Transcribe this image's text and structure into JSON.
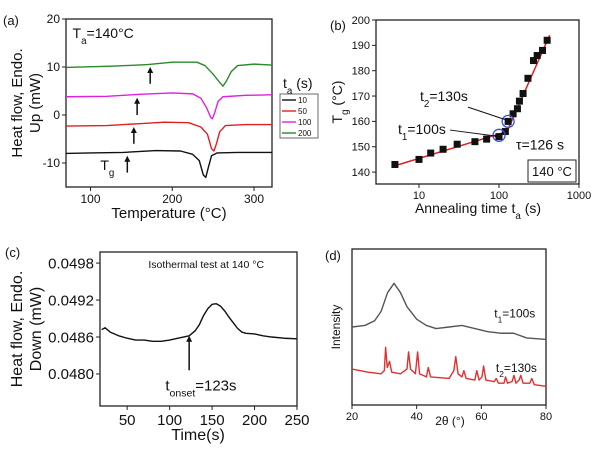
{
  "chart_data": [
    {
      "id": "a",
      "type": "line",
      "panel_label": "(a)",
      "xlabel": [
        {
          "t": "Temperature (°C)"
        }
      ],
      "ylabel_lines": [
        "Heat flow, Endo.",
        "Up (mW)"
      ],
      "xlim": [
        70,
        322
      ],
      "ylim": [
        -15,
        20
      ],
      "xticks": [
        100,
        200,
        300
      ],
      "yticks": [
        -10,
        0,
        10,
        20
      ],
      "annotations": [
        {
          "segments": [
            {
              "t": "T"
            },
            {
              "t": "a",
              "sub": true
            },
            {
              "t": "=140°C"
            }
          ],
          "at": [
            78,
            16
          ]
        },
        {
          "segments": [
            {
              "t": "T"
            },
            {
              "t": "g",
              "sub": true
            }
          ],
          "at": [
            112,
            -11.5
          ]
        }
      ],
      "arrows": [
        {
          "x": 145,
          "y_from": -12,
          "y_to": -8.5
        },
        {
          "x": 153,
          "y_from": -6,
          "y_to": -2.5
        },
        {
          "x": 157,
          "y_from": 0,
          "y_to": 3.6
        },
        {
          "x": 173,
          "y_from": 6.5,
          "y_to": 10
        }
      ],
      "legend": {
        "title": [
          {
            "t": "t"
          },
          {
            "t": "a",
            "sub": true
          },
          {
            "t": " (s)"
          }
        ],
        "placement": "right-outside"
      },
      "series": [
        {
          "name": "10",
          "color": "#111111",
          "points": [
            [
              70,
              -8
            ],
            [
              100,
              -7.9
            ],
            [
              140,
              -7.8
            ],
            [
              180,
              -7.4
            ],
            [
              210,
              -7.5
            ],
            [
              225,
              -8.2
            ],
            [
              233,
              -9.5
            ],
            [
              238,
              -12.5
            ],
            [
              241,
              -13
            ],
            [
              244,
              -11
            ],
            [
              248,
              -8.5
            ],
            [
              255,
              -7.9
            ],
            [
              280,
              -7.8
            ],
            [
              322,
              -7.8
            ]
          ]
        },
        {
          "name": "50",
          "color": "#e02020",
          "points": [
            [
              70,
              -2.3
            ],
            [
              120,
              -2.2
            ],
            [
              160,
              -1.8
            ],
            [
              190,
              -1.5
            ],
            [
              220,
              -1.6
            ],
            [
              235,
              -2.5
            ],
            [
              243,
              -4
            ],
            [
              248,
              -7
            ],
            [
              251,
              -7.5
            ],
            [
              254,
              -6
            ],
            [
              258,
              -3.5
            ],
            [
              265,
              -2.2
            ],
            [
              290,
              -2
            ],
            [
              322,
              -2
            ]
          ]
        },
        {
          "name": "100",
          "color": "#e020e0",
          "points": [
            [
              70,
              3.8
            ],
            [
              120,
              3.9
            ],
            [
              160,
              4.3
            ],
            [
              200,
              4.6
            ],
            [
              225,
              4.4
            ],
            [
              235,
              3.5
            ],
            [
              242,
              1.5
            ],
            [
              247,
              -0.5
            ],
            [
              249,
              -0.8
            ],
            [
              252,
              0.5
            ],
            [
              256,
              2.8
            ],
            [
              262,
              3.8
            ],
            [
              290,
              4.1
            ],
            [
              322,
              4.2
            ]
          ]
        },
        {
          "name": "200",
          "color": "#2a8a2a",
          "points": [
            [
              70,
              9.9
            ],
            [
              130,
              10.2
            ],
            [
              170,
              10.5
            ],
            [
              200,
              11
            ],
            [
              230,
              11
            ],
            [
              240,
              10.3
            ],
            [
              250,
              8.5
            ],
            [
              257,
              7
            ],
            [
              262,
              6
            ],
            [
              266,
              7
            ],
            [
              272,
              9
            ],
            [
              280,
              10.3
            ],
            [
              300,
              10.6
            ],
            [
              322,
              10.4
            ]
          ]
        }
      ]
    },
    {
      "id": "b",
      "type": "scatter",
      "panel_label": "(b)",
      "xlabel": [
        {
          "t": "Annealing time t"
        },
        {
          "t": "a",
          "sub": true
        },
        {
          "t": " (s)"
        }
      ],
      "ylabel": [
        {
          "t": "T"
        },
        {
          "t": "g",
          "sub": true
        },
        {
          "t": " (°C)"
        }
      ],
      "xscale": "log",
      "xlim": [
        2.9,
        1000
      ],
      "ylim": [
        135.3,
        200
      ],
      "xticks": [
        10,
        100,
        1000
      ],
      "yticks": [
        140,
        150,
        160,
        170,
        180,
        190,
        200
      ],
      "points": [
        [
          5,
          143
        ],
        [
          10,
          145
        ],
        [
          14,
          147.5
        ],
        [
          20,
          149
        ],
        [
          30,
          151
        ],
        [
          50,
          152
        ],
        [
          70,
          153
        ],
        [
          100,
          154
        ],
        [
          120,
          156
        ],
        [
          130,
          160
        ],
        [
          150,
          163
        ],
        [
          170,
          165
        ],
        [
          180,
          168
        ],
        [
          200,
          171
        ],
        [
          230,
          177
        ],
        [
          270,
          184
        ],
        [
          300,
          186
        ],
        [
          350,
          188
        ],
        [
          400,
          192
        ]
      ],
      "fit_lines": [
        {
          "color": "#e02020",
          "from": [
            5,
            142.5
          ],
          "to": [
            126,
            156
          ]
        },
        {
          "color": "#e02020",
          "from": [
            126,
            156
          ],
          "to": [
            430,
            194
          ]
        }
      ],
      "circles": [
        {
          "x": 100,
          "y": 154.5,
          "color": "#3050e0"
        },
        {
          "x": 130,
          "y": 160,
          "color": "#3050e0"
        }
      ],
      "annotations": [
        {
          "segments": [
            {
              "t": "t"
            },
            {
              "t": "2",
              "sub": true
            },
            {
              "t": "=130s"
            }
          ],
          "at": [
            44,
            168
          ],
          "arrow_to": [
            125,
            160.5
          ]
        },
        {
          "segments": [
            {
              "t": "t"
            },
            {
              "t": "1",
              "sub": true
            },
            {
              "t": "=100s"
            }
          ],
          "at": [
            22,
            155
          ],
          "arrow_to": [
            92,
            154.2
          ]
        },
        {
          "segments": [
            {
              "t": "τ=126 s"
            }
          ],
          "at": [
            140,
            149
          ]
        }
      ],
      "boxed_label": "140 °C"
    },
    {
      "id": "c",
      "type": "line",
      "panel_label": "(c)",
      "xlabel": [
        {
          "t": "Time(s)"
        }
      ],
      "ylabel_lines": [
        "Heat flow, Endo.",
        "Down (mW)"
      ],
      "xlim": [
        18,
        250
      ],
      "ylim": [
        0.04748,
        0.04998
      ],
      "xticks": [
        50,
        100,
        150,
        200,
        250
      ],
      "yticks": [
        0.048,
        0.0486,
        0.0492,
        0.0498
      ],
      "ytick_labels": [
        "0.0480",
        "0.0486",
        "0.0492",
        "0.0498"
      ],
      "annotations": [
        {
          "segments": [
            {
              "t": "Isothermal test at 140 °C"
            }
          ],
          "at": [
            75,
            0.04972
          ],
          "small": true
        },
        {
          "segments": [
            {
              "t": "t"
            },
            {
              "t": "onset",
              "sub": true
            },
            {
              "t": "=123s"
            }
          ],
          "at": [
            95,
            0.04773
          ]
        }
      ],
      "arrows": [
        {
          "x": 123,
          "y_from": 0.04806,
          "y_to": 0.04862
        }
      ],
      "series": [
        {
          "name": "isothermal",
          "color": "#111111",
          "points": [
            [
              20,
              0.04872
            ],
            [
              24,
              0.04875
            ],
            [
              30,
              0.04868
            ],
            [
              40,
              0.04862
            ],
            [
              50,
              0.04858
            ],
            [
              60,
              0.04855
            ],
            [
              70,
              0.04855
            ],
            [
              80,
              0.04853
            ],
            [
              90,
              0.04853
            ],
            [
              100,
              0.04855
            ],
            [
              110,
              0.04858
            ],
            [
              123,
              0.04862
            ],
            [
              130,
              0.0487
            ],
            [
              135,
              0.0488
            ],
            [
              140,
              0.04895
            ],
            [
              145,
              0.04906
            ],
            [
              150,
              0.04913
            ],
            [
              155,
              0.04914
            ],
            [
              160,
              0.0491
            ],
            [
              165,
              0.04902
            ],
            [
              170,
              0.04892
            ],
            [
              175,
              0.04883
            ],
            [
              180,
              0.04874
            ],
            [
              185,
              0.04868
            ],
            [
              190,
              0.04866
            ],
            [
              200,
              0.04865
            ],
            [
              210,
              0.04862
            ],
            [
              220,
              0.0486
            ],
            [
              235,
              0.04858
            ],
            [
              250,
              0.04857
            ]
          ]
        }
      ]
    },
    {
      "id": "d",
      "type": "line",
      "panel_label": "(d)",
      "xlabel": [
        {
          "t": "2θ (°)"
        }
      ],
      "ylabel": [
        {
          "t": "Intensity"
        }
      ],
      "xlim": [
        20,
        80
      ],
      "ylim": [
        0,
        1
      ],
      "xticks": [
        20,
        40,
        60,
        80
      ],
      "yticks": [],
      "annotations": [
        {
          "segments": [
            {
              "t": "t"
            },
            {
              "t": "1",
              "sub": true
            },
            {
              "t": "=100s"
            }
          ],
          "at": [
            64,
            0.56
          ]
        },
        {
          "segments": [
            {
              "t": "t"
            },
            {
              "t": "2",
              "sub": true
            },
            {
              "t": "=130s"
            }
          ],
          "at": [
            64.5,
            0.21
          ]
        }
      ],
      "series": [
        {
          "name": "t1=100s",
          "color": "#555555",
          "points": [
            [
              20,
              0.5
            ],
            [
              24,
              0.51
            ],
            [
              27,
              0.54
            ],
            [
              29,
              0.6
            ],
            [
              31,
              0.72
            ],
            [
              33,
              0.78
            ],
            [
              35,
              0.72
            ],
            [
              37,
              0.63
            ],
            [
              40,
              0.55
            ],
            [
              43,
              0.51
            ],
            [
              46,
              0.49
            ],
            [
              50,
              0.5
            ],
            [
              54,
              0.51
            ],
            [
              58,
              0.49
            ],
            [
              62,
              0.47
            ],
            [
              66,
              0.46
            ],
            [
              70,
              0.46
            ],
            [
              74,
              0.43
            ],
            [
              80,
              0.42
            ]
          ]
        },
        {
          "name": "t2=130s",
          "color": "#e03030",
          "points": [
            [
              20,
              0.23
            ],
            [
              25,
              0.21
            ],
            [
              29,
              0.2
            ],
            [
              30,
              0.22
            ],
            [
              30.4,
              0.37
            ],
            [
              30.9,
              0.24
            ],
            [
              31.6,
              0.28
            ],
            [
              32.3,
              0.21
            ],
            [
              35,
              0.2
            ],
            [
              37,
              0.23
            ],
            [
              37.5,
              0.34
            ],
            [
              38.1,
              0.23
            ],
            [
              39.6,
              0.2
            ],
            [
              40.3,
              0.34
            ],
            [
              40.9,
              0.2
            ],
            [
              43,
              0.18
            ],
            [
              43.6,
              0.24
            ],
            [
              44.3,
              0.18
            ],
            [
              50,
              0.17
            ],
            [
              51.5,
              0.22
            ],
            [
              52.1,
              0.31
            ],
            [
              52.8,
              0.2
            ],
            [
              54,
              0.18
            ],
            [
              54.6,
              0.22
            ],
            [
              55.3,
              0.17
            ],
            [
              58,
              0.16
            ],
            [
              58.6,
              0.22
            ],
            [
              59.3,
              0.16
            ],
            [
              60.2,
              0.18
            ],
            [
              60.7,
              0.25
            ],
            [
              61.4,
              0.16
            ],
            [
              64,
              0.15
            ],
            [
              64.6,
              0.17
            ],
            [
              65.3,
              0.14
            ],
            [
              67,
              0.14
            ],
            [
              67.5,
              0.18
            ],
            [
              68.1,
              0.14
            ],
            [
              69.5,
              0.15
            ],
            [
              70.1,
              0.19
            ],
            [
              70.7,
              0.14
            ],
            [
              71.7,
              0.16
            ],
            [
              72.2,
              0.19
            ],
            [
              72.9,
              0.14
            ],
            [
              75,
              0.14
            ],
            [
              75.6,
              0.17
            ],
            [
              76.4,
              0.13
            ],
            [
              80,
              0.12
            ]
          ]
        }
      ]
    }
  ]
}
